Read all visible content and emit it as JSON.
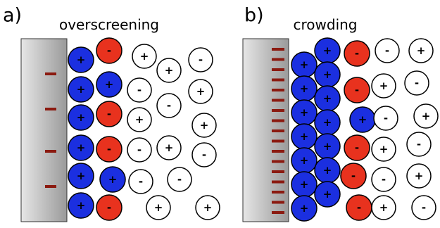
{
  "panels": [
    {
      "label": "a)",
      "title": "overscreening",
      "ions": [
        {
          "sign": "+",
          "color": "#1b2fe0"
        },
        {
          "sign": "+",
          "color": "#1b2fe0"
        },
        {
          "sign": "+",
          "color": "#1b2fe0"
        },
        {
          "sign": "+",
          "color": "#1b2fe0"
        },
        {
          "sign": "+",
          "color": "#1b2fe0"
        },
        {
          "sign": "+",
          "color": "#1b2fe0"
        },
        {
          "sign": "-",
          "color": "#e8321e"
        },
        {
          "sign": "+",
          "color": "#1b2fe0"
        },
        {
          "sign": "-",
          "color": "#e8321e"
        },
        {
          "sign": "-",
          "color": "#e8321e"
        },
        {
          "sign": "+",
          "color": "#1b2fe0"
        },
        {
          "sign": "-",
          "color": "#e8321e"
        },
        {
          "sign": "+",
          "color": "#ffffff"
        },
        {
          "sign": "+",
          "color": "#ffffff"
        },
        {
          "sign": "-",
          "color": "#ffffff"
        },
        {
          "sign": "-",
          "color": "#ffffff"
        },
        {
          "sign": "-",
          "color": "#ffffff"
        },
        {
          "sign": "+",
          "color": "#ffffff"
        },
        {
          "sign": "+",
          "color": "#ffffff"
        },
        {
          "sign": "+",
          "color": "#ffffff"
        },
        {
          "sign": "-",
          "color": "#ffffff"
        },
        {
          "sign": "+",
          "color": "#ffffff"
        },
        {
          "sign": "-",
          "color": "#ffffff"
        },
        {
          "sign": "-",
          "color": "#ffffff"
        },
        {
          "sign": "-",
          "color": "#ffffff"
        },
        {
          "sign": "+",
          "color": "#ffffff"
        },
        {
          "sign": "+",
          "color": "#ffffff"
        }
      ]
    },
    {
      "label": "b)",
      "title": "crowding",
      "ions": [
        {
          "sign": "+",
          "color": "#1b2fe0"
        },
        {
          "sign": "+",
          "color": "#1b2fe0"
        },
        {
          "sign": "+",
          "color": "#1b2fe0"
        },
        {
          "sign": "+",
          "color": "#1b2fe0"
        },
        {
          "sign": "+",
          "color": "#1b2fe0"
        },
        {
          "sign": "+",
          "color": "#1b2fe0"
        },
        {
          "sign": "+",
          "color": "#1b2fe0"
        },
        {
          "sign": "+",
          "color": "#1b2fe0"
        },
        {
          "sign": "+",
          "color": "#1b2fe0"
        },
        {
          "sign": "+",
          "color": "#1b2fe0"
        },
        {
          "sign": "+",
          "color": "#1b2fe0"
        },
        {
          "sign": "+",
          "color": "#1b2fe0"
        },
        {
          "sign": "+",
          "color": "#1b2fe0"
        },
        {
          "sign": "+",
          "color": "#1b2fe0"
        },
        {
          "sign": "-",
          "color": "#e8321e"
        },
        {
          "sign": "-",
          "color": "#e8321e"
        },
        {
          "sign": "+",
          "color": "#1b2fe0"
        },
        {
          "sign": "-",
          "color": "#e8321e"
        },
        {
          "sign": "-",
          "color": "#e8321e"
        },
        {
          "sign": "-",
          "color": "#e8321e"
        },
        {
          "sign": "-",
          "color": "#ffffff"
        },
        {
          "sign": "+",
          "color": "#ffffff"
        },
        {
          "sign": "+",
          "color": "#ffffff"
        },
        {
          "sign": "-",
          "color": "#ffffff"
        },
        {
          "sign": "-",
          "color": "#ffffff"
        },
        {
          "sign": "+",
          "color": "#ffffff"
        },
        {
          "sign": "+",
          "color": "#ffffff"
        },
        {
          "sign": "-",
          "color": "#ffffff"
        },
        {
          "sign": "-",
          "color": "#ffffff"
        },
        {
          "sign": "+",
          "color": "#ffffff"
        },
        {
          "sign": "+",
          "color": "#ffffff"
        },
        {
          "sign": "-",
          "color": "#ffffff"
        }
      ]
    }
  ]
}
